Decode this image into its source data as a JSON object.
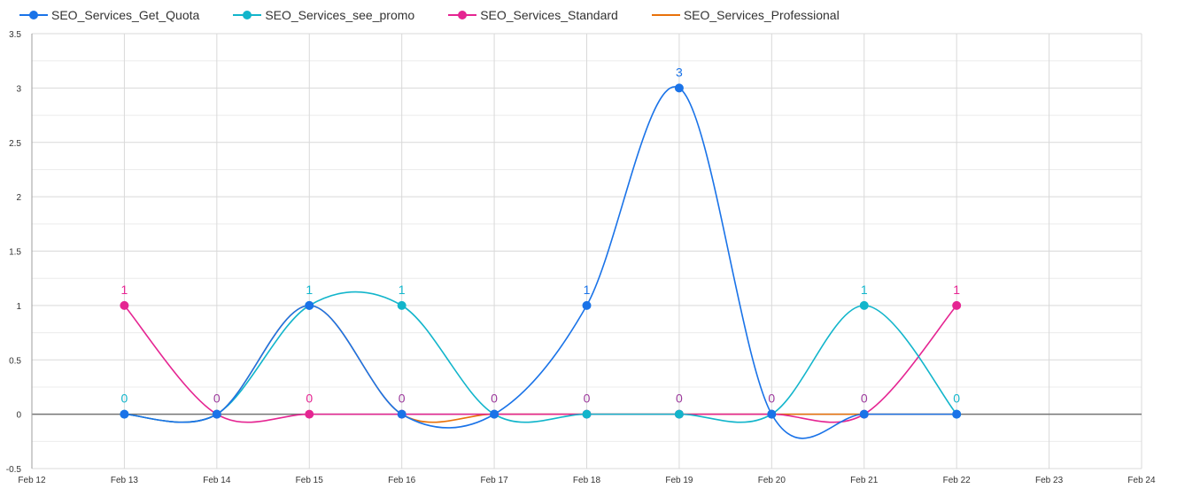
{
  "chart_data": {
    "type": "line",
    "x": [
      "Feb 12",
      "Feb 13",
      "Feb 14",
      "Feb 15",
      "Feb 16",
      "Feb 17",
      "Feb 18",
      "Feb 19",
      "Feb 20",
      "Feb 21",
      "Feb 22",
      "Feb 23",
      "Feb 24"
    ],
    "ylim": [
      -0.5,
      3.5
    ],
    "y_ticks": [
      "-0.5",
      "0",
      "0.5",
      "1",
      "1.5",
      "2",
      "2.5",
      "3",
      "3.5"
    ],
    "grid": true,
    "legend_position": "top-left",
    "series": [
      {
        "name": "SEO_Services_Get_Quota",
        "color": "#1a73e8",
        "markers": true,
        "values": [
          null,
          0,
          0,
          1,
          0,
          0,
          1,
          3,
          0,
          0,
          0,
          null,
          null
        ]
      },
      {
        "name": "SEO_Services_see_promo",
        "color": "#12b5cb",
        "markers": true,
        "values": [
          null,
          0,
          0,
          1,
          1,
          0,
          0,
          0,
          0,
          1,
          0,
          null,
          null
        ]
      },
      {
        "name": "SEO_Services_Standard",
        "color": "#e52592",
        "markers": true,
        "values": [
          null,
          1,
          0,
          0,
          0,
          0,
          0,
          0,
          0,
          0,
          1,
          null,
          null
        ]
      },
      {
        "name": "SEO_Services_Professional",
        "color": "#e8710a",
        "markers": false,
        "values": [
          null,
          0,
          0,
          1,
          0,
          0,
          0,
          0,
          0,
          0,
          0,
          null,
          null
        ]
      }
    ],
    "data_labels": [
      {
        "x_index": 1,
        "text": "1",
        "color": "#e52592",
        "level": 1
      },
      {
        "x_index": 1,
        "text": "0",
        "color": "#12b5cb",
        "level": 0
      },
      {
        "x_index": 2,
        "text": "0",
        "color": "#9c3a9c",
        "level": 0
      },
      {
        "x_index": 3,
        "text": "1",
        "color": "#12b5cb",
        "level": 1
      },
      {
        "x_index": 3,
        "text": "0",
        "color": "#e52592",
        "level": 0
      },
      {
        "x_index": 4,
        "text": "1",
        "color": "#12b5cb",
        "level": 1
      },
      {
        "x_index": 4,
        "text": "0",
        "color": "#9c3a9c",
        "level": 0
      },
      {
        "x_index": 5,
        "text": "0",
        "color": "#9c3a9c",
        "level": 0
      },
      {
        "x_index": 6,
        "text": "1",
        "color": "#1a73e8",
        "level": 1
      },
      {
        "x_index": 6,
        "text": "0",
        "color": "#9c3a9c",
        "level": 0
      },
      {
        "x_index": 7,
        "text": "3",
        "color": "#1a73e8",
        "level": 3
      },
      {
        "x_index": 7,
        "text": "0",
        "color": "#9c3a9c",
        "level": 0
      },
      {
        "x_index": 8,
        "text": "0",
        "color": "#9c3a9c",
        "level": 0
      },
      {
        "x_index": 9,
        "text": "1",
        "color": "#12b5cb",
        "level": 1
      },
      {
        "x_index": 9,
        "text": "0",
        "color": "#9c3a9c",
        "level": 0
      },
      {
        "x_index": 10,
        "text": "1",
        "color": "#e52592",
        "level": 1
      },
      {
        "x_index": 10,
        "text": "0",
        "color": "#12b5cb",
        "level": 0
      }
    ]
  }
}
